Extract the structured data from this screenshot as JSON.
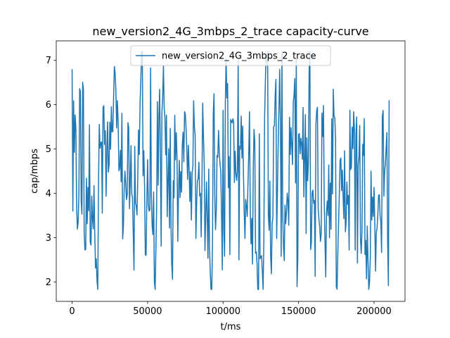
{
  "chart_data": {
    "type": "line",
    "title": "new_version2_4G_3mbps_2_trace capacity-curve",
    "xlabel": "t/ms",
    "ylabel": "cap/mbps",
    "xlim": [
      -10500,
      220500
    ],
    "ylim": [
      1.56,
      7.44
    ],
    "x_ticks": [
      0,
      50000,
      100000,
      150000,
      200000
    ],
    "y_ticks": [
      2,
      3,
      4,
      5,
      6,
      7
    ],
    "grid": false,
    "legend_position": "top-center",
    "series": [
      {
        "name": "new_version2_4G_3mbps_2_trace",
        "color": "#1f77b4",
        "sample_interval_ms": 500,
        "t_start_ms": 0,
        "t_end_ms": 210000,
        "y_min": 1.83,
        "y_max": 7.2,
        "first_value": 6.8,
        "last_value": 6.1
      }
    ]
  }
}
